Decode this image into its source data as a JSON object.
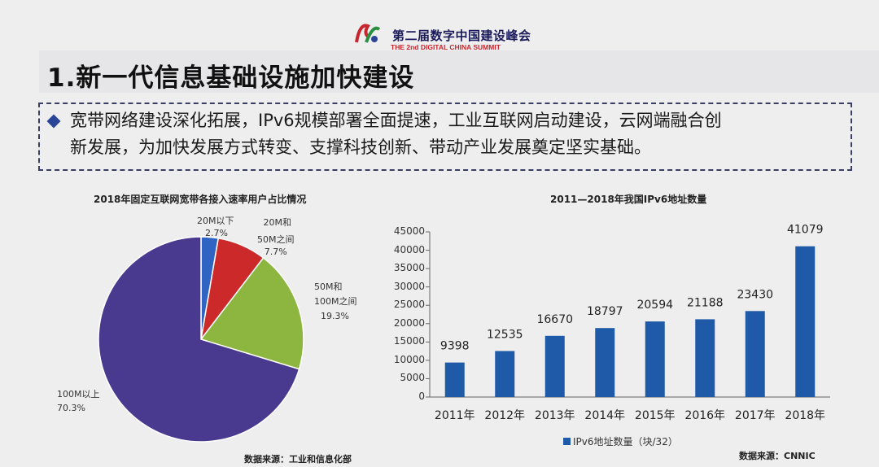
{
  "header": {
    "title": "第二届数字中国建设峰会",
    "subtitle": "THE 2nd DIGITAL CHINA SUMMIT"
  },
  "section_title": "1.新一代信息基础设施加快建设",
  "summary": {
    "line1": "宽带网络建设深化拓展，IPv6规模部署全面提速，工业互联网启动建设，云网端融合创",
    "line2": "新发展，为加快发展方式转变、支撑科技创新、带动产业发展奠定坚实基础。"
  },
  "colors": {
    "brand_blue": "#2a4597",
    "pie_purple": "#4a3a8f",
    "pie_green": "#8db640",
    "pie_red": "#cc2a2a",
    "pie_blue": "#2f64c2",
    "bar": "#1f5aa8"
  },
  "pie_chart": {
    "title": "2018年固定互联网宽带各接入速率用户占比情况",
    "source": "数据来源：工业和信息化部"
  },
  "bar_chart": {
    "title": "2011—2018年我国IPv6地址数量",
    "source": "数据来源：CNNIC",
    "legend": "IPv6地址数量（块/32）"
  },
  "chart_data": [
    {
      "type": "pie",
      "title": "2018年固定互联网宽带各接入速率用户占比情况",
      "slices": [
        {
          "label_lines": [
            "20M以下",
            "2.7%"
          ],
          "value": 2.7
        },
        {
          "label_lines": [
            "20M和",
            "50M之间",
            "7.7%"
          ],
          "value": 7.7
        },
        {
          "label_lines": [
            "50M和",
            "100M之间",
            "19.3%"
          ],
          "value": 19.3
        },
        {
          "label_lines": [
            "100M以上",
            "70.3%"
          ],
          "value": 70.3
        }
      ]
    },
    {
      "type": "bar",
      "title": "2011—2018年我国IPv6地址数量",
      "categories": [
        "2011年",
        "2012年",
        "2013年",
        "2014年",
        "2015年",
        "2016年",
        "2017年",
        "2018年"
      ],
      "series": [
        {
          "name": "IPv6地址数量（块/32）",
          "values": [
            9398,
            12535,
            16670,
            18797,
            20594,
            21188,
            23430,
            41079
          ]
        }
      ],
      "ylim": [
        0,
        45000
      ],
      "yticks": [
        0,
        5000,
        10000,
        15000,
        20000,
        25000,
        30000,
        35000,
        40000,
        45000
      ]
    }
  ]
}
